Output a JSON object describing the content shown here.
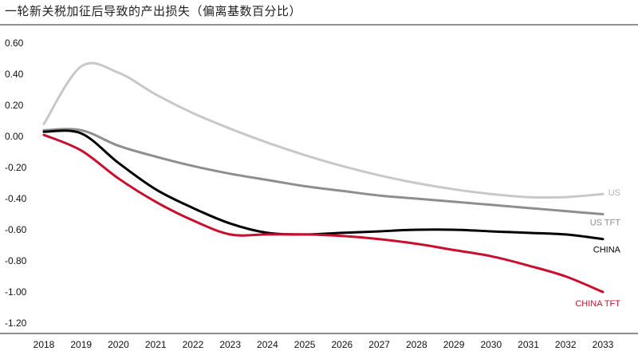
{
  "title": "一轮新关税加征后导致的产出损失（偏离基数百分比）",
  "chart_data": {
    "type": "line",
    "title": "一轮新关税加征后导致的产出损失（偏离基数百分比）",
    "x": [
      2018,
      2019,
      2020,
      2021,
      2022,
      2023,
      2024,
      2025,
      2026,
      2027,
      2028,
      2029,
      2030,
      2031,
      2032,
      2033
    ],
    "xticks": [
      "2018",
      "2019",
      "2020",
      "2021",
      "2022",
      "2023",
      "2024",
      "2025",
      "2026",
      "2027",
      "2028",
      "2029",
      "2030",
      "2031",
      "2032",
      "2033"
    ],
    "yticks": [
      "0.60",
      "0.40",
      "0.20",
      "0.00",
      "-0.20",
      "-0.40",
      "-0.60",
      "-0.80",
      "-1.00",
      "-1.20"
    ],
    "ylim": [
      -1.2,
      0.6
    ],
    "xlim": [
      2018,
      2033
    ],
    "grid": false,
    "series": [
      {
        "name": "US",
        "color": "#c8c8c8",
        "values": [
          0.08,
          0.45,
          0.41,
          0.27,
          0.15,
          0.05,
          -0.04,
          -0.12,
          -0.19,
          -0.25,
          -0.3,
          -0.34,
          -0.37,
          -0.39,
          -0.39,
          -0.37
        ]
      },
      {
        "name": "US TFT",
        "color": "#8e8e8e",
        "values": [
          0.04,
          0.04,
          -0.06,
          -0.13,
          -0.19,
          -0.24,
          -0.28,
          -0.32,
          -0.35,
          -0.38,
          -0.4,
          -0.42,
          -0.44,
          -0.46,
          -0.48,
          -0.5
        ]
      },
      {
        "name": "CHINA",
        "color": "#000000",
        "values": [
          0.03,
          0.02,
          -0.17,
          -0.34,
          -0.46,
          -0.56,
          -0.62,
          -0.63,
          -0.62,
          -0.61,
          -0.6,
          -0.6,
          -0.61,
          -0.62,
          -0.63,
          -0.66
        ]
      },
      {
        "name": "CHINA TFT",
        "color": "#c8102e",
        "values": [
          0.01,
          -0.09,
          -0.27,
          -0.42,
          -0.54,
          -0.63,
          -0.63,
          -0.63,
          -0.64,
          -0.66,
          -0.69,
          -0.73,
          -0.77,
          -0.83,
          -0.9,
          -1.0
        ]
      }
    ]
  }
}
